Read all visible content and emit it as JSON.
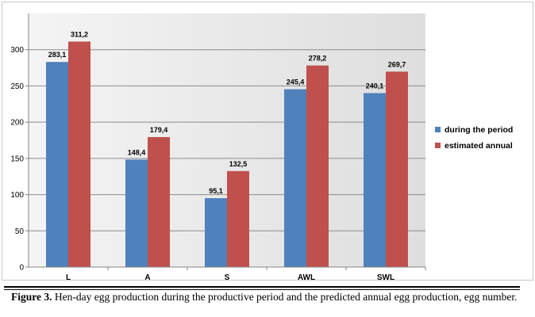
{
  "chart_data": {
    "type": "bar",
    "categories": [
      "L",
      "A",
      "S",
      "AWL",
      "SWL"
    ],
    "series": [
      {
        "name": "during the period",
        "values": [
          283.1,
          148.4,
          95.1,
          245.4,
          240.1
        ],
        "labels": [
          "283,1",
          "148,4",
          "95,1",
          "245,4",
          "240,1"
        ],
        "color": "#4f81bd"
      },
      {
        "name": "estimated annual",
        "values": [
          311.2,
          179.4,
          132.5,
          278.2,
          269.7
        ],
        "labels": [
          "311,2",
          "179,4",
          "132,5",
          "278,2",
          "269,7"
        ],
        "color": "#c0504d"
      }
    ],
    "ylim": [
      0,
      350
    ],
    "yticks": [
      0,
      50,
      100,
      150,
      200,
      250,
      300
    ],
    "grid": true,
    "legend_position": "right"
  },
  "caption": {
    "label": "Figure 3.",
    "text": "Hen-day egg production during the productive period and the predicted annual egg production, egg number."
  }
}
